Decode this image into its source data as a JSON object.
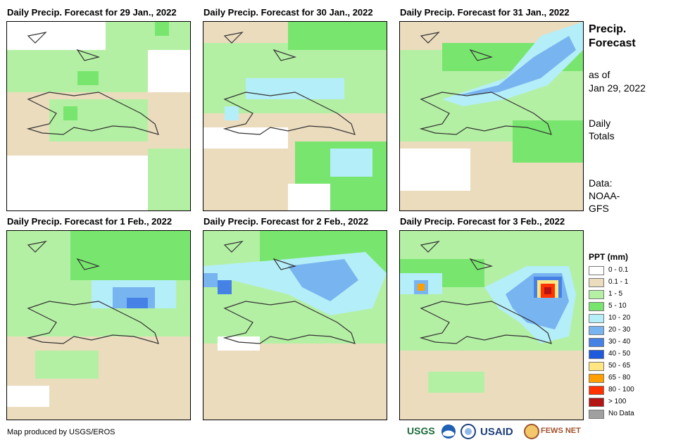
{
  "panels": [
    {
      "title": "Daily Precip. Forecast for 29 Jan., 2022"
    },
    {
      "title": "Daily Precip. Forecast for 30 Jan., 2022"
    },
    {
      "title": "Daily Precip. Forecast for 31 Jan., 2022"
    },
    {
      "title": "Daily Precip. Forecast for 1 Feb., 2022"
    },
    {
      "title": "Daily Precip. Forecast for 2 Feb., 2022"
    },
    {
      "title": "Daily Precip. Forecast for 3 Feb., 2022"
    }
  ],
  "side": {
    "title_line1": "Precip.",
    "title_line2": "Forecast",
    "asof_line1": "as of",
    "asof_line2": "Jan 29, 2022",
    "totals_line1": "Daily",
    "totals_line2": "Totals",
    "data_line1": "Data:",
    "data_line2": "NOAA-",
    "data_line3": "GFS"
  },
  "legend": {
    "title": "PPT (mm)",
    "items": [
      {
        "label": "0 - 0.1",
        "color": "#ffffff"
      },
      {
        "label": "0.1 - 1",
        "color": "#ecdcbe"
      },
      {
        "label": "1 - 5",
        "color": "#b4f0a4"
      },
      {
        "label": "5 - 10",
        "color": "#78e66e"
      },
      {
        "label": "10 - 20",
        "color": "#b4eef8"
      },
      {
        "label": "20 - 30",
        "color": "#78b4f0"
      },
      {
        "label": "30 - 40",
        "color": "#4682e6"
      },
      {
        "label": "40 - 50",
        "color": "#1e5adc"
      },
      {
        "label": "50 - 65",
        "color": "#ffe682"
      },
      {
        "label": "65 - 80",
        "color": "#ffa000"
      },
      {
        "label": "80 - 100",
        "color": "#ff3200"
      },
      {
        "label": "> 100",
        "color": "#b41414"
      },
      {
        "label": "No Data",
        "color": "#a0a0a0"
      }
    ]
  },
  "footer": {
    "credit": "Map produced by USGS/EROS"
  },
  "logos": {
    "usgs": "USGS",
    "usaid": "USAID",
    "fewsnet": "FEWS NET"
  }
}
